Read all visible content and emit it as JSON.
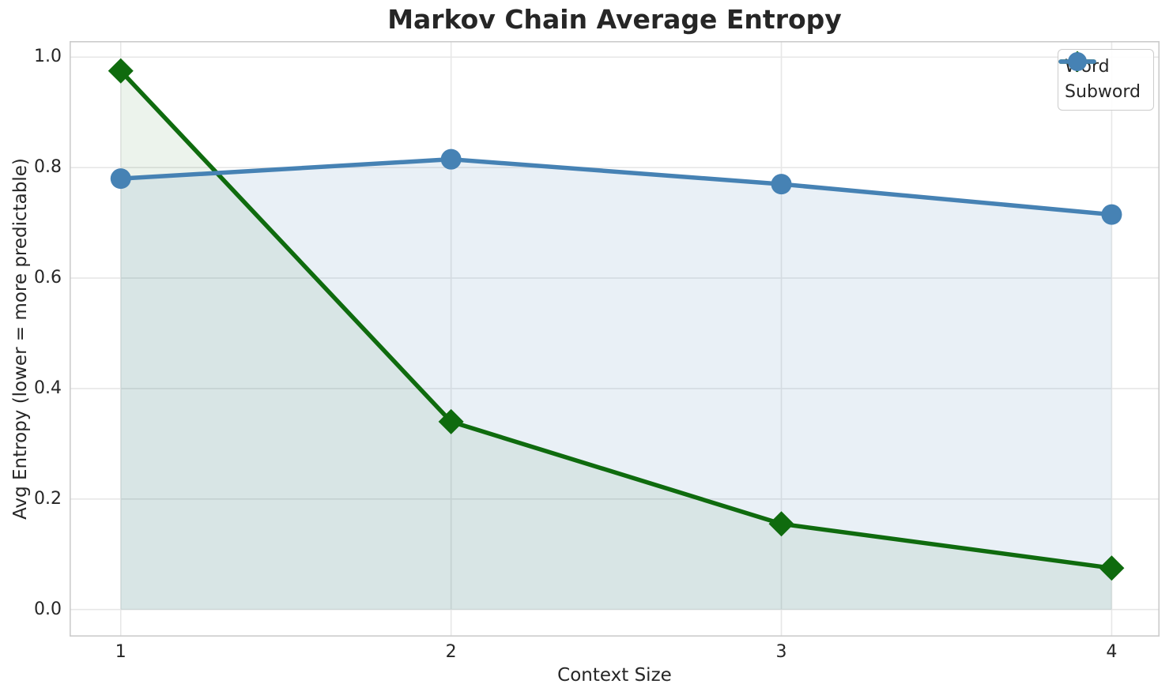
{
  "chart_data": {
    "type": "line",
    "title": "Markov Chain Average Entropy",
    "xlabel": "Context Size",
    "ylabel": "Avg Entropy (lower = more predictable)",
    "x": [
      1,
      2,
      3,
      4
    ],
    "xtick_labels": [
      "1",
      "2",
      "3",
      "4"
    ],
    "ytick_values": [
      0.0,
      0.2,
      0.4,
      0.6,
      0.8,
      1.0
    ],
    "ytick_labels": [
      "0.0",
      "0.2",
      "0.4",
      "0.6",
      "0.8",
      "1.0"
    ],
    "xlim": [
      0.845,
      4.145
    ],
    "ylim": [
      -0.049,
      1.029
    ],
    "grid": true,
    "area_fill_to_zero": true,
    "legend_position": "upper right",
    "series": [
      {
        "name": "Word",
        "marker": "diamond",
        "color": "#0f6b0e",
        "fill_alpha": 0.08,
        "values": [
          0.975,
          0.34,
          0.155,
          0.075
        ]
      },
      {
        "name": "Subword",
        "marker": "circle",
        "color": "#4682b4",
        "fill_alpha": 0.12,
        "values": [
          0.78,
          0.815,
          0.77,
          0.715
        ]
      }
    ],
    "colors": {
      "background": "#ffffff",
      "text": "#262626",
      "grid": "#e7e7e7",
      "spine": "#cccccc"
    }
  }
}
